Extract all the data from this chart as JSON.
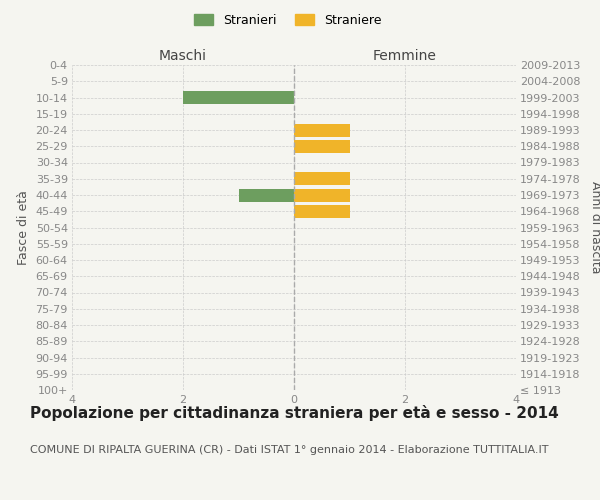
{
  "age_groups": [
    "100+",
    "95-99",
    "90-94",
    "85-89",
    "80-84",
    "75-79",
    "70-74",
    "65-69",
    "60-64",
    "55-59",
    "50-54",
    "45-49",
    "40-44",
    "35-39",
    "30-34",
    "25-29",
    "20-24",
    "15-19",
    "10-14",
    "5-9",
    "0-4"
  ],
  "birth_years": [
    "≤ 1913",
    "1914-1918",
    "1919-1923",
    "1924-1928",
    "1929-1933",
    "1934-1938",
    "1939-1943",
    "1944-1948",
    "1949-1953",
    "1954-1958",
    "1959-1963",
    "1964-1968",
    "1969-1973",
    "1974-1978",
    "1979-1983",
    "1984-1988",
    "1989-1993",
    "1994-1998",
    "1999-2003",
    "2004-2008",
    "2009-2013"
  ],
  "males": [
    0,
    0,
    0,
    0,
    0,
    0,
    0,
    0,
    0,
    0,
    0,
    0,
    1,
    0,
    0,
    0,
    0,
    0,
    2,
    0,
    0
  ],
  "females": [
    0,
    0,
    0,
    0,
    0,
    0,
    0,
    0,
    0,
    0,
    0,
    1,
    1,
    1,
    0,
    1,
    1,
    0,
    0,
    0,
    0
  ],
  "male_color": "#6d9e5f",
  "female_color": "#f0b429",
  "xlim": [
    -4,
    4
  ],
  "xticks": [
    -4,
    -2,
    0,
    2,
    4
  ],
  "xlabel_left": "Maschi",
  "xlabel_right": "Femmine",
  "ylabel_left": "Fasce di età",
  "ylabel_right": "Anni di nascita",
  "legend_male": "Stranieri",
  "legend_female": "Straniere",
  "title": "Popolazione per cittadinanza straniera per età e sesso - 2014",
  "subtitle": "COMUNE DI RIPALTA GUERINA (CR) - Dati ISTAT 1° gennaio 2014 - Elaborazione TUTTITALIA.IT",
  "bg_color": "#f5f5f0",
  "bar_height": 0.8,
  "grid_color": "#cccccc",
  "tick_color": "#888888",
  "title_fontsize": 11,
  "subtitle_fontsize": 8,
  "label_fontsize": 9,
  "tick_fontsize": 8
}
